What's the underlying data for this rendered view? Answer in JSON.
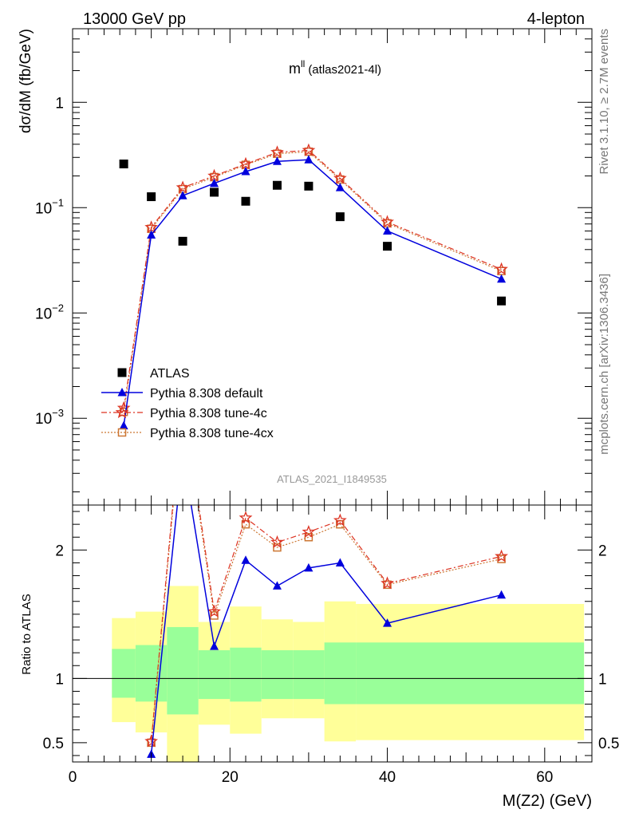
{
  "header": {
    "left": "13000 GeV pp",
    "right": "4-lepton"
  },
  "side_labels": {
    "rivet": "Rivet 3.1.10, ≥ 2.7M events",
    "mcplots": "mcplots.cern.ch [arXiv:1306.3436]"
  },
  "chart_data": [
    {
      "type": "scatter",
      "panel": "main",
      "title": "m",
      "title_superscript": "ll",
      "title_suffix": "(atlas2021-4l)",
      "watermark": "ATLAS_2021_I1849535",
      "ylabel": "dσ/dM (fb/GeV)",
      "xlim": [
        0,
        66
      ],
      "ylim": [
        0.00015,
        5
      ],
      "yscale": "log",
      "ytick_values": [
        0.001,
        0.01,
        0.1,
        1
      ],
      "ytick_labels": [
        {
          "base": "10",
          "exp": "−3"
        },
        {
          "base": "10",
          "exp": "−2"
        },
        {
          "base": "10",
          "exp": "−1"
        },
        {
          "base": "1",
          "exp": ""
        }
      ],
      "legend_position": "lower-left",
      "series": [
        {
          "name": "ATLAS",
          "style": "data",
          "color": "#000000",
          "x": [
            6.5,
            10,
            14,
            18,
            22,
            26,
            30,
            34,
            40,
            54.5
          ],
          "y": [
            0.26,
            0.127,
            0.048,
            0.14,
            0.115,
            0.163,
            0.16,
            0.082,
            0.043,
            0.013
          ]
        },
        {
          "name": "Pythia 8.308 default",
          "style": "solid-triangle",
          "color": "#0000dd",
          "x": [
            6.5,
            10,
            14,
            18,
            22,
            26,
            30,
            34,
            40,
            54.5
          ],
          "y": [
            0.00085,
            0.055,
            0.13,
            0.17,
            0.22,
            0.275,
            0.285,
            0.155,
            0.06,
            0.021
          ]
        },
        {
          "name": "Pythia 8.308 tune-4c",
          "style": "dashdot-star",
          "color": "#dd3322",
          "x": [
            6.5,
            10,
            14,
            18,
            22,
            26,
            30,
            34,
            40,
            54.5
          ],
          "y": [
            0.00125,
            0.065,
            0.155,
            0.2,
            0.26,
            0.335,
            0.35,
            0.19,
            0.073,
            0.026
          ]
        },
        {
          "name": "Pythia 8.308 tune-4cx",
          "style": "dotted-square",
          "color": "#cc7733",
          "x": [
            6.5,
            10,
            14,
            18,
            22,
            26,
            30,
            34,
            40,
            54.5
          ],
          "y": [
            0.00115,
            0.063,
            0.15,
            0.195,
            0.255,
            0.325,
            0.34,
            0.185,
            0.071,
            0.025
          ]
        }
      ]
    },
    {
      "type": "line",
      "panel": "ratio",
      "ylabel": "Ratio to ATLAS",
      "xlabel": "M(Z2) (GeV)",
      "xlim": [
        0,
        66
      ],
      "ylim": [
        0.35,
        2.35
      ],
      "xticks": [
        0,
        20,
        40,
        60
      ],
      "yticks": [
        0.5,
        1,
        2
      ],
      "bins": [
        {
          "lo": 5,
          "hi": 8,
          "band_1s": [
            0.85,
            1.23
          ],
          "band_2s": [
            0.66,
            1.47
          ]
        },
        {
          "lo": 8,
          "hi": 12,
          "band_1s": [
            0.82,
            1.26
          ],
          "band_2s": [
            0.58,
            1.52
          ]
        },
        {
          "lo": 12,
          "hi": 16,
          "band_1s": [
            0.72,
            1.4
          ],
          "band_2s": [
            0.2,
            1.72
          ]
        },
        {
          "lo": 16,
          "hi": 20,
          "band_1s": [
            0.84,
            1.22
          ],
          "band_2s": [
            0.64,
            1.44
          ]
        },
        {
          "lo": 20,
          "hi": 24,
          "band_1s": [
            0.82,
            1.24
          ],
          "band_2s": [
            0.57,
            1.56
          ]
        },
        {
          "lo": 24,
          "hi": 28,
          "band_1s": [
            0.84,
            1.22
          ],
          "band_2s": [
            0.69,
            1.46
          ]
        },
        {
          "lo": 28,
          "hi": 32,
          "band_1s": [
            0.84,
            1.22
          ],
          "band_2s": [
            0.69,
            1.44
          ]
        },
        {
          "lo": 32,
          "hi": 36,
          "band_1s": [
            0.8,
            1.28
          ],
          "band_2s": [
            0.51,
            1.6
          ]
        },
        {
          "lo": 36,
          "hi": 44,
          "band_1s": [
            0.8,
            1.28
          ],
          "band_2s": [
            0.52,
            1.58
          ]
        },
        {
          "lo": 44,
          "hi": 65,
          "band_1s": [
            0.8,
            1.28
          ],
          "band_2s": [
            0.52,
            1.58
          ]
        }
      ],
      "series": [
        {
          "name": "Pythia 8.308 default",
          "color": "#0000dd",
          "x": [
            10,
            14,
            18,
            22,
            26,
            30,
            34,
            40,
            54.5
          ],
          "y": [
            0.41,
            2.75,
            1.25,
            1.92,
            1.72,
            1.86,
            1.9,
            1.43,
            1.65
          ]
        },
        {
          "name": "Pythia 8.308 tune-4c",
          "color": "#dd3322",
          "x": [
            10,
            14,
            18,
            22,
            26,
            30,
            34,
            40,
            54.5
          ],
          "y": [
            0.51,
            3.2,
            1.52,
            2.25,
            2.06,
            2.14,
            2.23,
            1.74,
            1.95
          ]
        },
        {
          "name": "Pythia 8.308 tune-4cx",
          "color": "#cc7733",
          "x": [
            10,
            14,
            18,
            22,
            26,
            30,
            34,
            40,
            54.5
          ],
          "y": [
            0.5,
            3.15,
            1.49,
            2.2,
            2.02,
            2.1,
            2.2,
            1.73,
            1.93
          ]
        }
      ]
    }
  ]
}
